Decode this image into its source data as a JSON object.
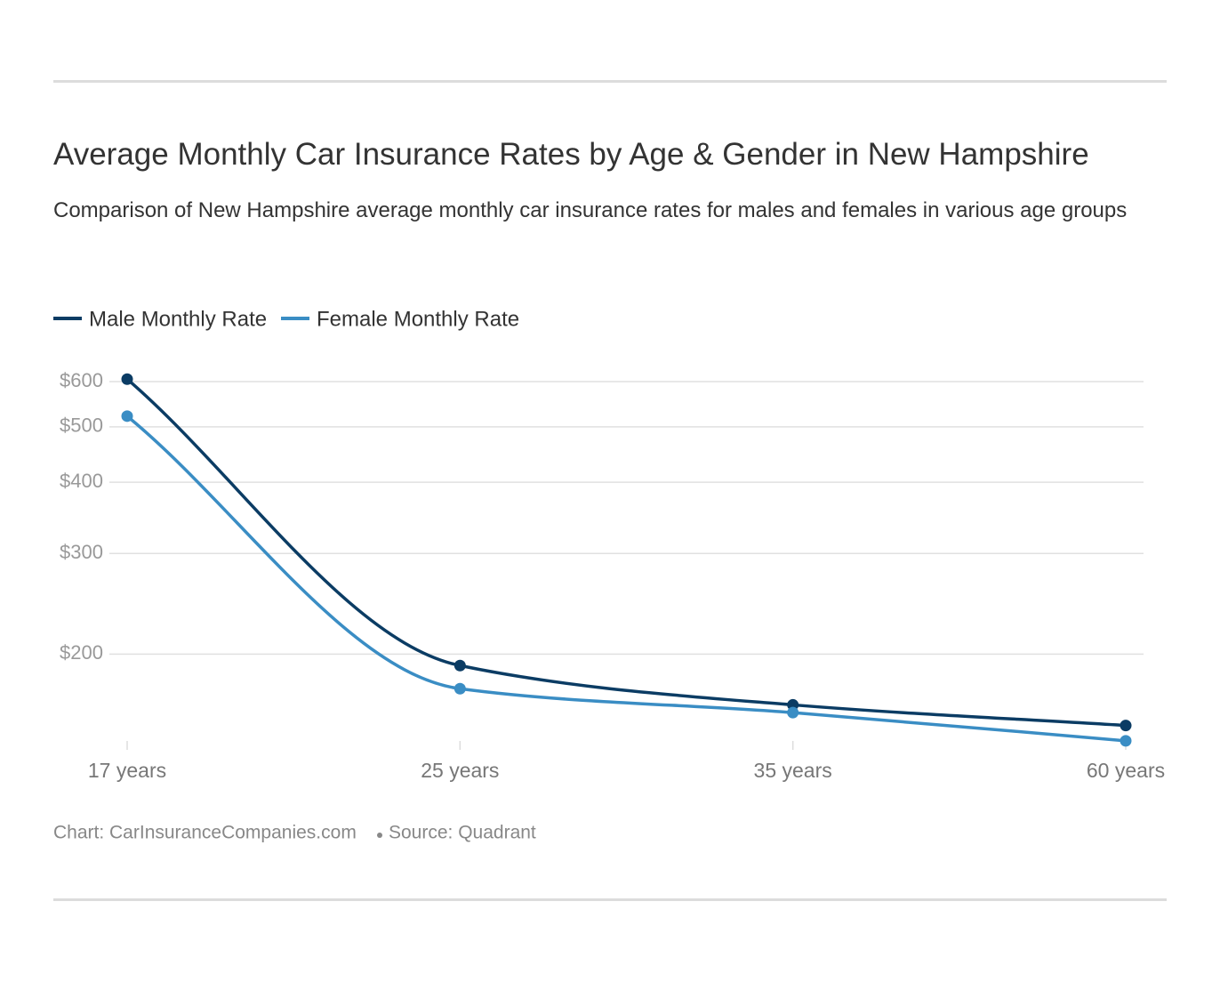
{
  "chart_data": {
    "type": "line",
    "title": "Average Monthly Car Insurance Rates by Age & Gender in New Hampshire",
    "subtitle": "Comparison of New Hampshire average monthly car insurance rates for males and females in various age groups",
    "categories": [
      "17 years",
      "25 years",
      "35 years",
      "60 years"
    ],
    "series": [
      {
        "name": "Male Monthly Rate",
        "color": "#0b3c64",
        "values": [
          606,
          191,
          163,
          150
        ]
      },
      {
        "name": "Female Monthly Rate",
        "color": "#3a8dc4",
        "values": [
          522,
          174,
          158,
          141
        ]
      }
    ],
    "log_scale": true,
    "ylim": [
      135,
      640
    ],
    "yticks": [
      {
        "value": 200,
        "label": "$200"
      },
      {
        "value": 300,
        "label": "$300"
      },
      {
        "value": 400,
        "label": "$400"
      },
      {
        "value": 500,
        "label": "$500"
      },
      {
        "value": 600,
        "label": "$600"
      }
    ],
    "grid": true,
    "credit": "Chart: CarInsuranceCompanies.com",
    "source": "Source: Quadrant"
  }
}
